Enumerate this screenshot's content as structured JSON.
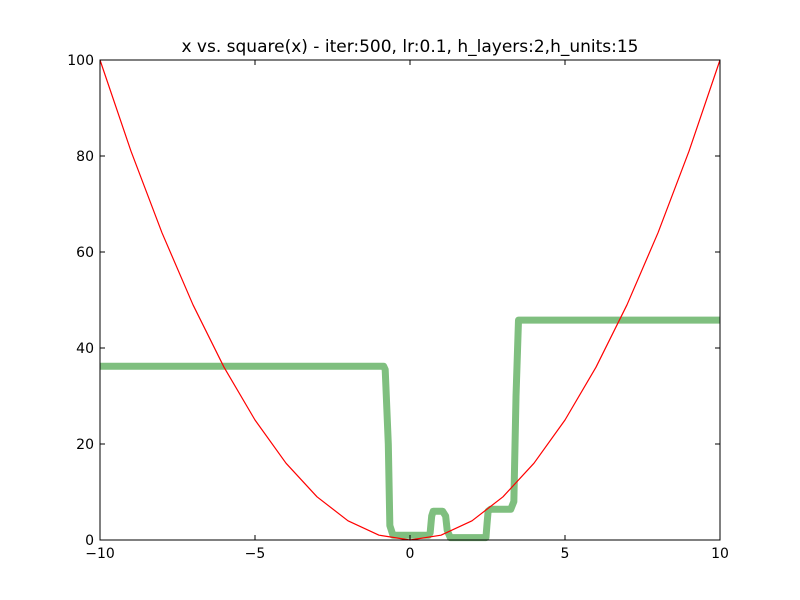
{
  "chart_data": {
    "type": "line",
    "title": "x vs. square(x) - iter:500, lr:0.1, h_layers:2,h_units:15",
    "xlabel": "",
    "ylabel": "",
    "xlim": [
      -10,
      10
    ],
    "ylim": [
      0,
      100
    ],
    "x_ticks": [
      -10,
      -5,
      0,
      5,
      10
    ],
    "x_tick_labels": [
      "−10",
      "−5",
      "0",
      "5",
      "10"
    ],
    "y_ticks": [
      0,
      20,
      40,
      60,
      80,
      100
    ],
    "y_tick_labels": [
      "0",
      "20",
      "40",
      "60",
      "80",
      "100"
    ],
    "grid": false,
    "legend": "none",
    "series": [
      {
        "function": "x^2",
        "color": "#ff0000",
        "x": [
          -10,
          -9,
          -8,
          -7,
          -6,
          -5,
          -4,
          -3,
          -2,
          -1,
          0,
          1,
          2,
          3,
          4,
          5,
          6,
          7,
          8,
          9,
          10
        ],
        "y": [
          100,
          81,
          64,
          49,
          36,
          25,
          16,
          9,
          4,
          1,
          0,
          1,
          4,
          9,
          16,
          25,
          36,
          49,
          64,
          81,
          100
        ]
      },
      {
        "color": "#7fbf7f",
        "x": [
          -10,
          -0.85,
          -0.8,
          -0.7,
          -0.65,
          -0.55,
          0.6,
          0.65,
          0.7,
          0.75,
          1.05,
          1.15,
          1.2,
          1.3,
          1.4,
          2.45,
          2.48,
          2.52,
          2.6,
          3.25,
          3.35,
          3.42,
          3.5,
          10
        ],
        "y": [
          36.2,
          36.2,
          35.5,
          20,
          3,
          1,
          1,
          1.5,
          5,
          6,
          6,
          5,
          2,
          0.5,
          0.5,
          0.5,
          3,
          6,
          6.4,
          6.4,
          8,
          30,
          45.8,
          45.8
        ]
      }
    ]
  }
}
